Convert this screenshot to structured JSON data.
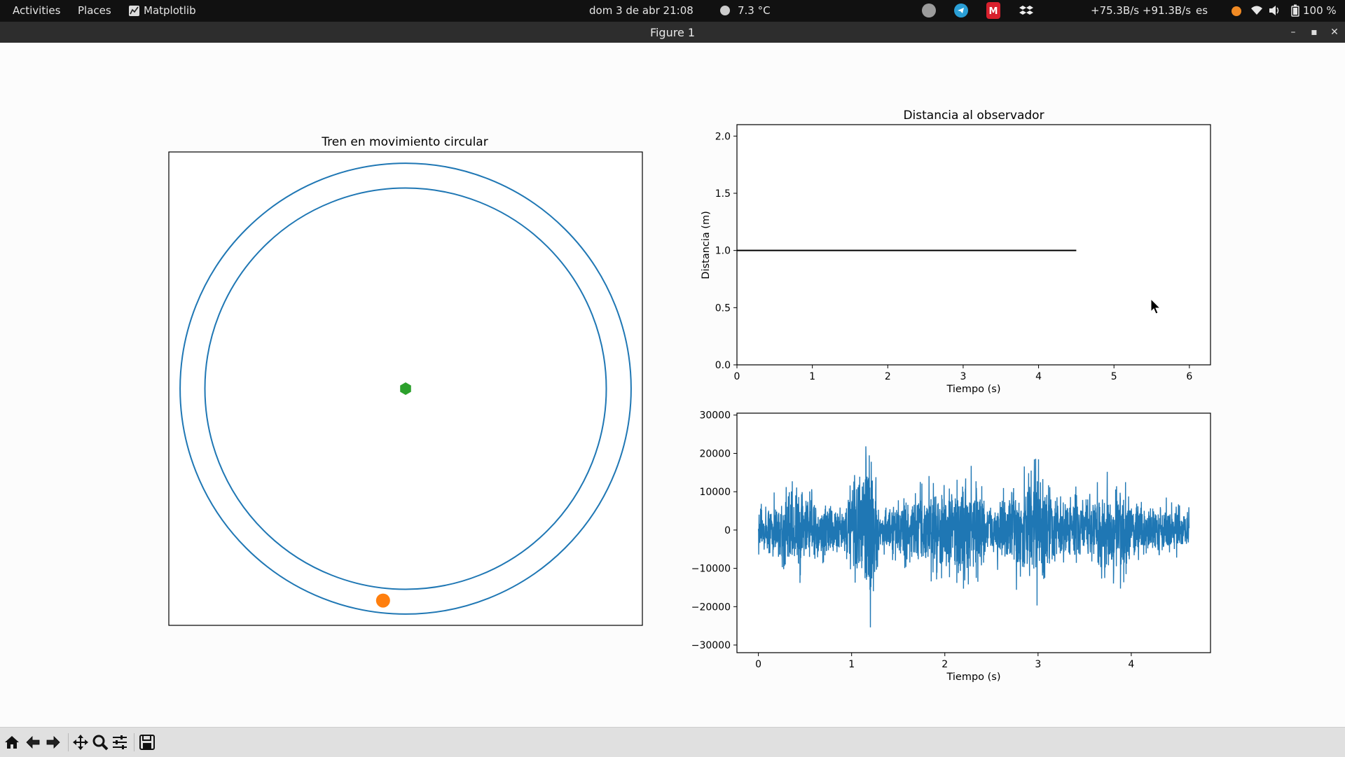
{
  "topbar": {
    "activities": "Activities",
    "places": "Places",
    "app_name": "Matplotlib",
    "clock": "dom 3 de abr  21:08",
    "weather": "7.3 °C",
    "net_speed": "+75.3B/s +91.3B/s",
    "lang": "es",
    "battery": "100 %"
  },
  "window": {
    "title": "Figure 1"
  },
  "charts": {
    "circle_title": "Tren en movimiento circular",
    "dist_title": "Distancia al observador",
    "dist_xlabel": "Tiempo (s)",
    "dist_ylabel": "Distancia (m)",
    "sig_xlabel": "Tiempo (s)"
  },
  "chart_data": [
    {
      "type": "scatter",
      "title": "Tren en movimiento circular",
      "series": [
        {
          "name": "",
          "kind": "line",
          "shape": "circle",
          "radius": 1.0,
          "color": "#1f77b4"
        },
        {
          "name": "",
          "kind": "line",
          "shape": "circle",
          "radius": 0.89,
          "color": "#1f77b4"
        },
        {
          "name": "",
          "kind": "point",
          "x": 0.0,
          "y": 0.0,
          "marker": "hexagon",
          "color": "#2ca02c"
        },
        {
          "name": "",
          "kind": "point",
          "x": -0.1,
          "y": -0.94,
          "marker": "circle",
          "color": "#ff7f0e"
        }
      ],
      "xlim": [
        -1.05,
        1.05
      ],
      "ylim": [
        -1.05,
        1.05
      ],
      "axis_ticks": "off"
    },
    {
      "type": "line",
      "title": "Distancia al observador",
      "xlabel": "Tiempo (s)",
      "ylabel": "Distancia (m)",
      "xlim": [
        0,
        6.28
      ],
      "ylim": [
        0,
        2.1
      ],
      "xticks": [
        0,
        1,
        2,
        3,
        4,
        5,
        6
      ],
      "yticks": [
        0.0,
        0.5,
        1.0,
        1.5,
        2.0
      ],
      "ytick_labels": [
        "0.0",
        "0.5",
        "1.0",
        "1.5",
        "2.0"
      ],
      "series": [
        {
          "name": "",
          "x": [
            0,
            4.5
          ],
          "y": [
            1.0,
            1.0
          ],
          "color": "#000000"
        }
      ]
    },
    {
      "type": "line",
      "title": "",
      "xlabel": "Tiempo (s)",
      "ylabel": "",
      "xlim": [
        -0.23,
        4.85
      ],
      "ylim": [
        -32000,
        30500
      ],
      "xticks": [
        0,
        1,
        2,
        3,
        4
      ],
      "yticks": [
        30000,
        20000,
        10000,
        0,
        -10000,
        -20000,
        -30000
      ],
      "ytick_labels": [
        "30000",
        "20000",
        "10000",
        "0",
        "−10000",
        "−20000",
        "−30000"
      ],
      "series": [
        {
          "name": "",
          "color": "#1f77b4",
          "x": [
            0,
            0.4,
            0.9,
            1.02,
            1.1,
            1.2,
            1.3,
            1.7,
            2.3,
            2.5,
            3.0,
            3.2,
            3.7,
            3.9,
            4.0,
            4.62
          ],
          "envelope": [
            6000,
            14000,
            8000,
            14000,
            18000,
            29000,
            6000,
            12000,
            18000,
            8000,
            20000,
            10000,
            13000,
            19000,
            9000,
            7000
          ]
        }
      ]
    }
  ]
}
